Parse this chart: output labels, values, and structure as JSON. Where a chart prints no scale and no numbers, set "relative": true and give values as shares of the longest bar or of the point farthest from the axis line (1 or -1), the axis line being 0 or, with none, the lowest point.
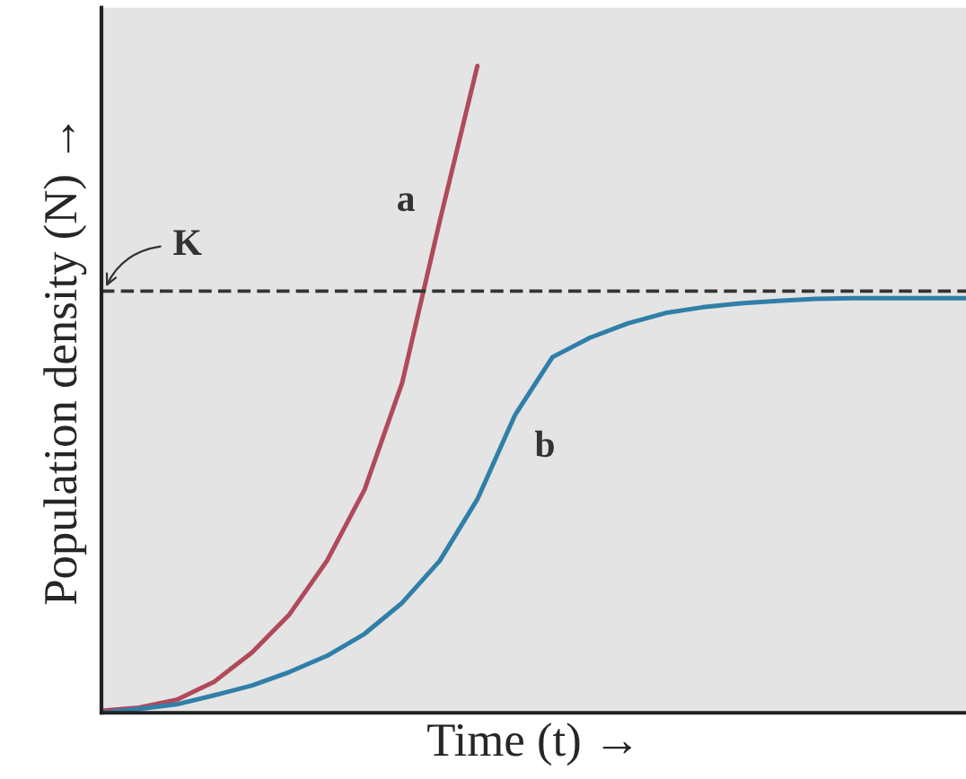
{
  "chart_data": {
    "type": "line",
    "relative": true,
    "xlabel": "Time (t) →",
    "ylabel": "Population density (N) →",
    "tick_labels": false,
    "categories": [
      null,
      null,
      null,
      null,
      null,
      null,
      null,
      null,
      null,
      null,
      null,
      null,
      null,
      null,
      null,
      null,
      null,
      null,
      null,
      null,
      null,
      null,
      null,
      null
    ],
    "series": [
      {
        "name": "a",
        "color": "#b04a5a",
        "values": [
          0.003,
          0.008,
          0.02,
          0.048,
          0.093,
          0.152,
          0.235,
          0.345,
          0.51,
          0.76,
          1,
          null,
          null,
          null,
          null,
          null,
          null,
          null,
          null,
          null,
          null,
          null,
          null,
          null
        ]
      },
      {
        "name": "b",
        "color": "#2f7fa8",
        "values": [
          0,
          0.006,
          0.013,
          0.027,
          0.042,
          0.063,
          0.088,
          0.122,
          0.17,
          0.235,
          0.33,
          0.46,
          0.55,
          0.58,
          0.602,
          0.618,
          0.627,
          0.633,
          0.637,
          0.64,
          0.641,
          0.641,
          0.641,
          0.641
        ]
      }
    ],
    "ref_lines": [
      {
        "axis": "y",
        "value": 0.652,
        "label": "K",
        "color": "#333333",
        "line_style": "dashed"
      }
    ]
  }
}
